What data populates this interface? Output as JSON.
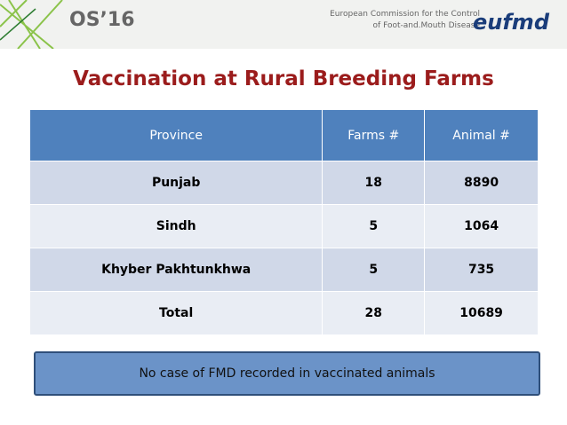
{
  "header": {
    "event": "OS’16",
    "organization": [
      "European Commission for the Control",
      "of Foot-and.Mouth Disease"
    ],
    "logo": "eufmd"
  },
  "title": "Vaccination at Rural Breeding Farms",
  "table": {
    "columns": [
      "Province",
      "Farms #",
      "Animal #"
    ],
    "rows": [
      [
        "Punjab",
        18,
        8890
      ],
      [
        "Sindh",
        5,
        1064
      ],
      [
        "Khyber Pakhtunkhwa",
        5,
        735
      ],
      [
        "Total",
        28,
        10689
      ]
    ]
  },
  "note": "No case of FMD recorded in vaccinated animals"
}
